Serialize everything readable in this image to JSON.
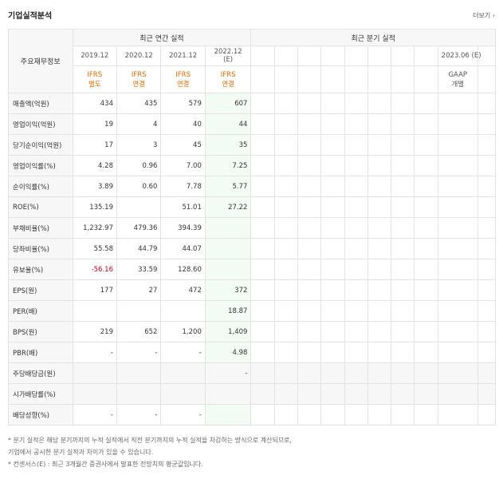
{
  "page": {
    "title": "기업실적분석",
    "more_label": "더보기 ›"
  },
  "header": {
    "row_label": "주요재무정보",
    "annual_title": "최근 연간 실적",
    "quarter_title": "최근 분기 실적",
    "annual_periods": [
      "2019.12",
      "2020.12",
      "2021.12",
      "2022.12"
    ],
    "annual_estimate_mark": "(E)",
    "annual_standards": [
      [
        "IFRS",
        "별도"
      ],
      [
        "IFRS",
        "연결"
      ],
      [
        "IFRS",
        "연결"
      ],
      [
        "IFRS",
        "연결"
      ]
    ],
    "quarter_period": "2023.06 (E)",
    "quarter_standard": [
      "GAAP",
      "개별"
    ]
  },
  "rows": [
    {
      "label": "매출액(억원)",
      "values": [
        "434",
        "435",
        "579",
        "607"
      ]
    },
    {
      "label": "영업이익(억원)",
      "values": [
        "19",
        "4",
        "40",
        "44"
      ]
    },
    {
      "label": "당기순이익(억원)",
      "values": [
        "17",
        "3",
        "45",
        "35"
      ]
    },
    {
      "label": "영업이익률(%)",
      "values": [
        "4.28",
        "0.96",
        "7.00",
        "7.25"
      ],
      "group": true
    },
    {
      "label": "순이익률(%)",
      "values": [
        "3.89",
        "0.60",
        "7.78",
        "5.77"
      ]
    },
    {
      "label": "ROE(%)",
      "values": [
        "135.19",
        "",
        "51.01",
        "27.22"
      ]
    },
    {
      "label": "부채비율(%)",
      "values": [
        "1,232.97",
        "479.36",
        "394.39",
        ""
      ],
      "group": true
    },
    {
      "label": "당좌비율(%)",
      "values": [
        "55.58",
        "44.79",
        "44.07",
        ""
      ]
    },
    {
      "label": "유보율(%)",
      "values": [
        "-56.16",
        "33.59",
        "128.60",
        ""
      ],
      "neg": [
        0
      ]
    },
    {
      "label": "EPS(원)",
      "values": [
        "177",
        "27",
        "472",
        "372"
      ],
      "group": true
    },
    {
      "label": "PER(배)",
      "values": [
        "",
        "",
        "",
        "18.87"
      ]
    },
    {
      "label": "BPS(원)",
      "values": [
        "219",
        "652",
        "1,200",
        "1,409"
      ]
    },
    {
      "label": "PBR(배)",
      "values": [
        "-",
        "-",
        "-",
        "4.98"
      ]
    },
    {
      "label": "주당배당금(원)",
      "values": [
        "",
        "",
        "",
        "-"
      ],
      "group": true,
      "blank_annual": true
    },
    {
      "label": "시가배당률(%)",
      "values": [
        "",
        "",
        "",
        ""
      ],
      "blank_annual": true
    },
    {
      "label": "배당성향(%)",
      "values": [
        "-",
        "-",
        "-",
        ""
      ]
    }
  ],
  "notes": [
    "* 분기 실적은 해당 분기까지의 누적 실적에서 직전 분기까지의 누적 실적을 차감하는 방식으로 계산되므로,",
    "  기업에서 공시한 분기 실적과 차이가 있을 수 있습니다.",
    "* 컨센서스(E) : 최근 3개월간 증권사에서 발표한 전망치의 평균값입니다."
  ]
}
